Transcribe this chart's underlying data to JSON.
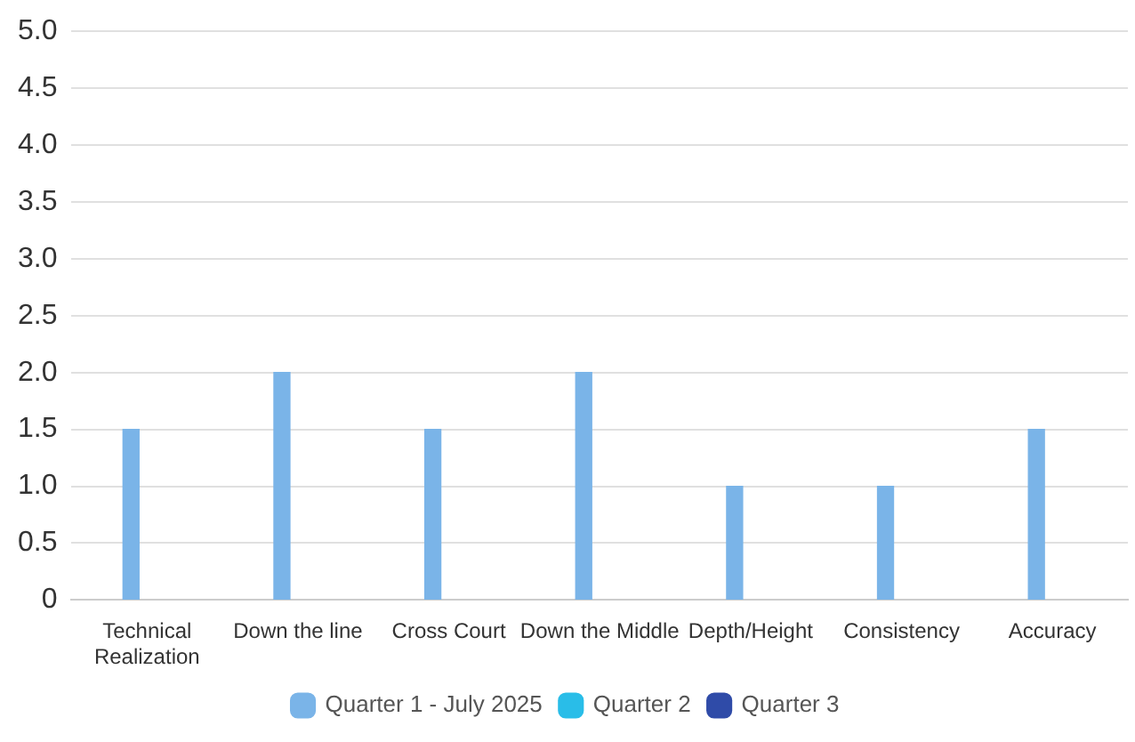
{
  "chart_data": {
    "type": "bar",
    "categories": [
      "Technical Realization",
      "Down the line",
      "Cross Court",
      "Down the Middle",
      "Depth/Height",
      "Consistency",
      "Accuracy"
    ],
    "series": [
      {
        "name": "Quarter 1 - July 2025",
        "color": "#7ab4e8",
        "values": [
          1.5,
          2,
          1.5,
          2,
          1,
          1,
          1.5
        ]
      },
      {
        "name": "Quarter 2",
        "color": "#29bde8",
        "values": [
          null,
          null,
          null,
          null,
          null,
          null,
          null
        ]
      },
      {
        "name": "Quarter 3",
        "color": "#2f4ba8",
        "values": [
          null,
          null,
          null,
          null,
          null,
          null,
          null
        ]
      }
    ],
    "ylim": [
      0,
      5
    ],
    "yticks": [
      0,
      0.5,
      {
        "value": 1,
        "label": "1.0"
      },
      1.5,
      {
        "value": 2,
        "label": "2.0"
      },
      2.5,
      {
        "value": 3,
        "label": "3.0"
      },
      3.5,
      {
        "value": 4,
        "label": "4.0"
      },
      4.5,
      {
        "value": 5,
        "label": "5.0"
      }
    ],
    "grid": "y",
    "legend": "bottom"
  }
}
